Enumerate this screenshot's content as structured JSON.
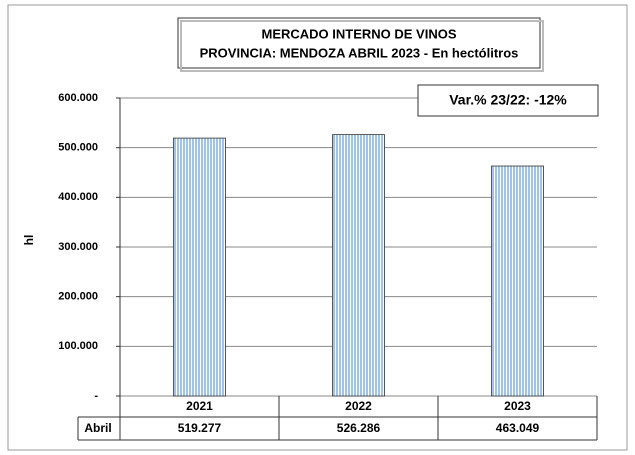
{
  "chart_data": {
    "type": "bar",
    "title": "MERCADO INTERNO DE VINOS",
    "subtitle": "PROVINCIA: MENDOZA ABRIL 2023 - En hectólitros",
    "annotation": "Var.% 23/22:  -12%",
    "y_label": "hl",
    "categories": [
      "2021",
      "2022",
      "2023"
    ],
    "values": [
      519277,
      526286,
      463049
    ],
    "value_labels": [
      "519.277",
      "526.286",
      "463.049"
    ],
    "table_row_label": "Abril",
    "color": "#9fc3f0",
    "ylim": [
      0,
      600000
    ],
    "yticks": [
      {
        "value": 0,
        "label": "-"
      },
      {
        "value": 100000,
        "label": "100.000"
      },
      {
        "value": 200000,
        "label": "200.000"
      },
      {
        "value": 300000,
        "label": "300.000"
      },
      {
        "value": 400000,
        "label": "400.000"
      },
      {
        "value": 500000,
        "label": "500.000"
      },
      {
        "value": 600000,
        "label": "600.000"
      }
    ],
    "grid": true
  }
}
